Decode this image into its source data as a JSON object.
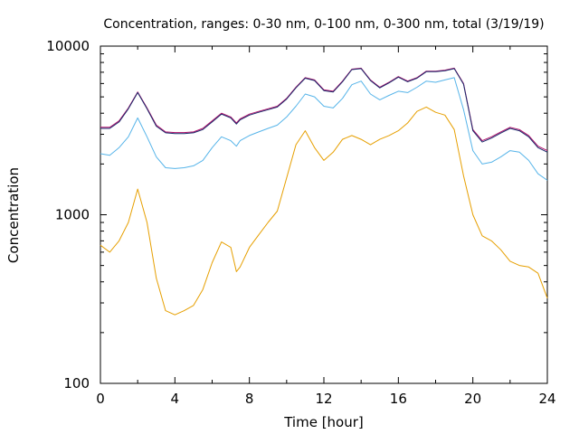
{
  "chart_data": {
    "type": "line",
    "title": "Concentration, ranges: 0-30 nm, 0-100 nm, 0-300 nm, total (3/19/19)",
    "xlabel": "Time [hour]",
    "ylabel": "Concentration",
    "xlim": [
      0,
      24
    ],
    "ylim": [
      100,
      10000
    ],
    "yscale": "log",
    "x_ticks": [
      0,
      4,
      8,
      12,
      16,
      20,
      24
    ],
    "x_tick_labels": [
      "0",
      "4",
      "8",
      "12",
      "16",
      "20",
      "24"
    ],
    "y_ticks": [
      100,
      1000,
      10000
    ],
    "y_tick_labels": [
      "100",
      "1000",
      "10000"
    ],
    "grid": false,
    "legend": "none",
    "x": [
      0,
      0.5,
      1,
      1.5,
      2,
      2.5,
      3,
      3.5,
      4,
      4.5,
      5,
      5.5,
      6,
      6.5,
      7,
      7.3,
      7.5,
      8,
      8.5,
      9,
      9.5,
      10,
      10.5,
      11,
      11.5,
      12,
      12.5,
      13,
      13.5,
      14,
      14.5,
      15,
      15.5,
      16,
      16.5,
      17,
      17.5,
      18,
      18.5,
      19,
      19.5,
      20,
      20.5,
      21,
      21.5,
      22,
      22.5,
      23,
      23.5,
      24
    ],
    "series": [
      {
        "color": "#e69f00",
        "values": [
          660,
          600,
          700,
          900,
          1420,
          900,
          420,
          270,
          255,
          270,
          290,
          360,
          520,
          690,
          640,
          460,
          490,
          640,
          760,
          900,
          1050,
          1650,
          2600,
          3150,
          2500,
          2100,
          2350,
          2800,
          2950,
          2800,
          2600,
          2800,
          2950,
          3150,
          3500,
          4100,
          4350,
          4050,
          3900,
          3200,
          1700,
          1000,
          750,
          700,
          620,
          530,
          500,
          490,
          450,
          320
        ]
      },
      {
        "color": "#56b4e9",
        "values": [
          2300,
          2250,
          2500,
          2900,
          3750,
          2900,
          2200,
          1900,
          1880,
          1900,
          1950,
          2100,
          2500,
          2900,
          2750,
          2550,
          2750,
          2950,
          3100,
          3250,
          3400,
          3800,
          4400,
          5200,
          5000,
          4400,
          4300,
          4900,
          5900,
          6200,
          5200,
          4800,
          5100,
          5400,
          5300,
          5700,
          6200,
          6100,
          6300,
          6500,
          4200,
          2400,
          2000,
          2050,
          2200,
          2400,
          2350,
          2100,
          1750,
          1600
        ]
      },
      {
        "color": "#b0106a",
        "values": [
          3300,
          3300,
          3600,
          4300,
          5350,
          4300,
          3400,
          3100,
          3070,
          3070,
          3100,
          3250,
          3600,
          4000,
          3800,
          3500,
          3700,
          3950,
          4100,
          4250,
          4400,
          4900,
          5700,
          6500,
          6300,
          5500,
          5400,
          6200,
          7300,
          7400,
          6300,
          5700,
          6100,
          6600,
          6200,
          6500,
          7100,
          7100,
          7200,
          7400,
          6000,
          3200,
          2750,
          2900,
          3100,
          3300,
          3200,
          2950,
          2550,
          2400
        ]
      },
      {
        "color": "#1a2a6c",
        "values": [
          3250,
          3250,
          3550,
          4250,
          5300,
          4250,
          3350,
          3060,
          3030,
          3030,
          3060,
          3200,
          3550,
          3950,
          3750,
          3450,
          3650,
          3900,
          4050,
          4200,
          4350,
          4850,
          5650,
          6450,
          6250,
          5450,
          5350,
          6150,
          7250,
          7350,
          6250,
          5650,
          6050,
          6550,
          6150,
          6450,
          7050,
          7050,
          7150,
          7350,
          5950,
          3150,
          2700,
          2850,
          3050,
          3250,
          3150,
          2900,
          2500,
          2350
        ]
      }
    ]
  }
}
